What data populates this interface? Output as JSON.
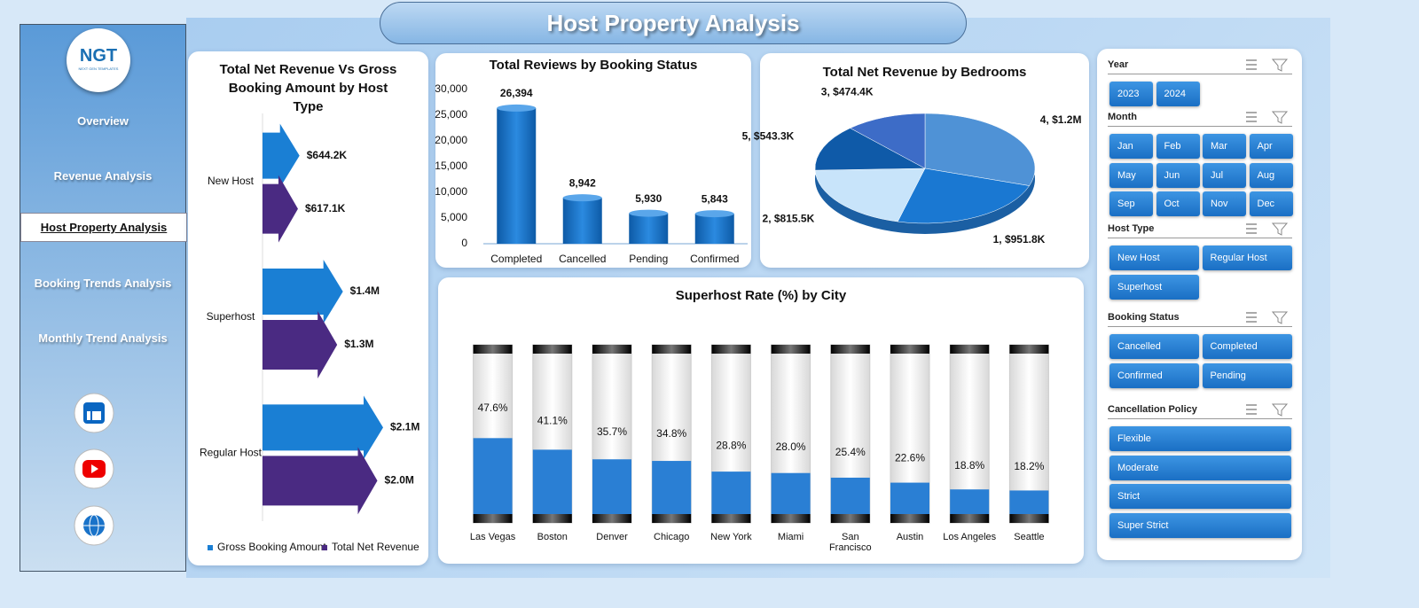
{
  "header": {
    "title": "Host Property Analysis"
  },
  "sidebar": {
    "logo": "NGT",
    "tagline": "NEXT GEN TEMPLATES",
    "nav": [
      "Overview",
      "Revenue Analysis",
      "Host Property Analysis",
      "Booking Trends Analysis",
      "Monthly Trend Analysis"
    ],
    "active": 2
  },
  "slicers": [
    {
      "title": "Year",
      "items": [
        "2023",
        "2024"
      ]
    },
    {
      "title": "Month",
      "items": [
        "Jan",
        "Feb",
        "Mar",
        "Apr",
        "May",
        "Jun",
        "Jul",
        "Aug",
        "Sep",
        "Oct",
        "Nov",
        "Dec"
      ]
    },
    {
      "title": "Host Type",
      "items": [
        "New Host",
        "Regular Host",
        "Superhost"
      ]
    },
    {
      "title": "Booking Status",
      "items": [
        "Cancelled",
        "Completed",
        "Confirmed",
        "Pending"
      ]
    },
    {
      "title": "Cancellation Policy",
      "items": [
        "Flexible",
        "Moderate",
        "Strict",
        "Super Strict"
      ]
    }
  ],
  "chart_data": [
    {
      "type": "bar",
      "horizontal": true,
      "title": "Total Net Revenue Vs Gross Booking Amount by Host Type",
      "categories": [
        "New Host",
        "Superhost",
        "Regular Host"
      ],
      "series": [
        {
          "name": "Gross Booking Amount",
          "color": "#1a7fd4",
          "values": [
            644200,
            1400000,
            2100000
          ],
          "value_labels": [
            "$644.2K",
            "$1.4M",
            "$2.1M"
          ]
        },
        {
          "name": "Total Net Revenue",
          "color": "#4a2a82",
          "values": [
            617100,
            1300000,
            2000000
          ],
          "value_labels": [
            "$617.1K",
            "$1.3M",
            "$2.0M"
          ]
        }
      ],
      "legend": "bottom"
    },
    {
      "type": "bar",
      "title": "Total Reviews by Booking Status",
      "categories": [
        "Completed",
        "Cancelled",
        "Pending",
        "Confirmed"
      ],
      "values": [
        26394,
        8942,
        5930,
        5843
      ],
      "value_labels": [
        "26,394",
        "8,942",
        "5,930",
        "5,843"
      ],
      "color": "#1a73c9",
      "ylim": [
        0,
        30000
      ],
      "yticks": [
        0,
        {
          "value": 5000,
          "label": "5,000"
        },
        {
          "value": 10000,
          "label": "10,000"
        },
        {
          "value": 15000,
          "label": "15,000"
        },
        {
          "value": 20000,
          "label": "20,000"
        },
        {
          "value": 25000,
          "label": "25,000"
        },
        {
          "value": 30000,
          "label": "30,000"
        }
      ]
    },
    {
      "type": "pie",
      "title": "Total Net Revenue by Bedrooms",
      "categories": [
        "4",
        "1",
        "2",
        "5",
        "3"
      ],
      "values": [
        1200000,
        951800,
        815500,
        543300,
        474400
      ],
      "value_labels": [
        "$1.2M",
        "$951.8K",
        "$815.5K",
        "$543.3K",
        "$474.4K"
      ],
      "colors": [
        "#4f92d6",
        "#1a78d2",
        "#c8e4fa",
        "#0f5aa8",
        "#3d6cc7"
      ]
    },
    {
      "type": "bar",
      "title": "Superhost Rate (%) by City",
      "track": true,
      "categories": [
        "Las Vegas",
        "Boston",
        "Denver",
        "Chicago",
        "New York",
        "Miami",
        "San Francisco",
        "Austin",
        "Los Angeles",
        "Seattle"
      ],
      "values": [
        47.6,
        41.1,
        35.7,
        34.8,
        28.8,
        28.0,
        25.4,
        22.6,
        18.8,
        18.2
      ],
      "value_labels": [
        "47.6%",
        "41.1%",
        "35.7%",
        "34.8%",
        "28.8%",
        "28.0%",
        "25.4%",
        "22.6%",
        "18.8%",
        "18.2%"
      ],
      "color": "#2a7fd4",
      "ylim": [
        0,
        100
      ]
    }
  ]
}
